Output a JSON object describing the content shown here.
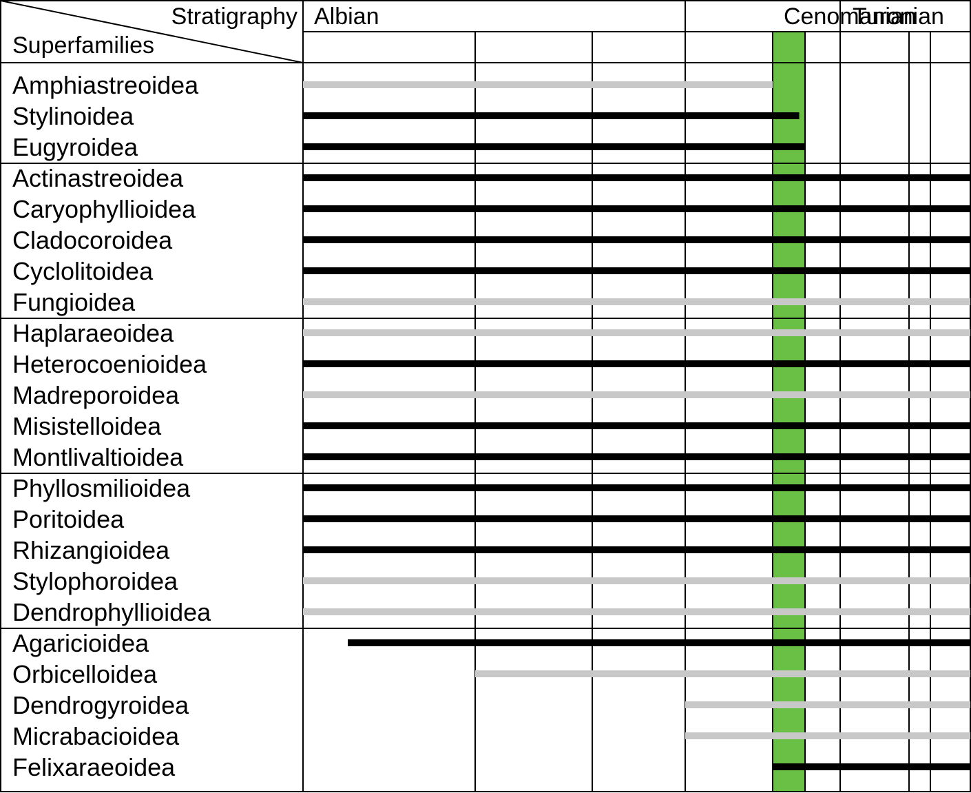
{
  "chart_data": {
    "type": "range",
    "corner": {
      "top": "Stratigraphy",
      "bottom": "Superfamilies"
    },
    "stages": [
      {
        "name": "Albian",
        "substages": 4
      },
      {
        "name": "Cenomanian",
        "substages": 2
      },
      {
        "name": "Turonian",
        "substages": 3
      }
    ],
    "highlight": {
      "stage_index": 4,
      "color": "#6abf45"
    },
    "colors": {
      "black": "#000000",
      "gray": "#c8c8c8"
    },
    "groups": [
      [
        {
          "name": "Amphiastreoidea",
          "start": 0,
          "end": 4.0,
          "color": "gray"
        },
        {
          "name": "Stylinoidea",
          "start": 0,
          "end": 4.82,
          "color": "black"
        },
        {
          "name": "Eugyroidea",
          "start": 0,
          "end": 5.0,
          "color": "black"
        }
      ],
      [
        {
          "name": "Actinastreoidea",
          "start": 0,
          "end": 8.0,
          "color": "black"
        },
        {
          "name": "Caryophyllioidea",
          "start": 0,
          "end": 8.0,
          "color": "black"
        },
        {
          "name": "Cladocoroidea",
          "start": 0,
          "end": 8.0,
          "color": "black"
        },
        {
          "name": "Cyclolitoidea",
          "start": 0,
          "end": 8.0,
          "color": "black"
        },
        {
          "name": "Fungioidea",
          "start": 0,
          "end": 8.0,
          "color": "gray"
        }
      ],
      [
        {
          "name": "Haplaraeoidea",
          "start": 0,
          "end": 8.0,
          "color": "gray"
        },
        {
          "name": "Heterocoenioidea",
          "start": 0,
          "end": 8.0,
          "color": "black"
        },
        {
          "name": "Madreporoidea",
          "start": 0,
          "end": 8.0,
          "color": "gray"
        },
        {
          "name": "Misistelloidea",
          "start": 0,
          "end": 8.0,
          "color": "black"
        },
        {
          "name": "Montlivaltioidea",
          "start": 0,
          "end": 8.0,
          "color": "black"
        }
      ],
      [
        {
          "name": "Phyllosmilioidea",
          "start": 0,
          "end": 8.0,
          "color": "black"
        },
        {
          "name": "Poritoidea",
          "start": 0,
          "end": 8.0,
          "color": "black"
        },
        {
          "name": "Rhizangioidea",
          "start": 0,
          "end": 8.0,
          "color": "black"
        },
        {
          "name": "Stylophoroidea",
          "start": 0,
          "end": 8.0,
          "color": "gray"
        },
        {
          "name": "Dendrophyllioidea",
          "start": 0,
          "end": 8.0,
          "color": "gray"
        }
      ],
      [
        {
          "name": "Agaricioidea",
          "start": 0.26,
          "end": 8.0,
          "color": "black"
        },
        {
          "name": "Orbicelloidea",
          "start": 1.0,
          "end": 8.0,
          "color": "gray"
        },
        {
          "name": "Dendrogyroidea",
          "start": 3.0,
          "end": 8.0,
          "color": "gray"
        },
        {
          "name": "Micrabacioidea",
          "start": 3.0,
          "end": 8.0,
          "color": "gray"
        },
        {
          "name": "Felixaraeoidea",
          "start": 4.0,
          "end": 8.0,
          "color": "black"
        }
      ]
    ]
  }
}
